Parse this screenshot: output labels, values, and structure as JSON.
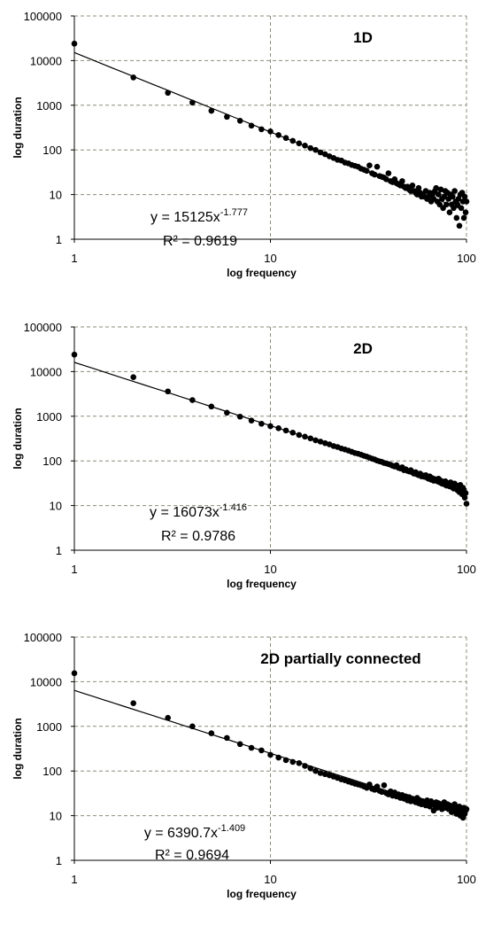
{
  "chart_data": [
    {
      "type": "scatter",
      "title": "1D",
      "xlabel": "log frequency",
      "ylabel": "log duration",
      "log_x": true,
      "log_y": true,
      "grid": true,
      "color": "#000000",
      "xlim": [
        1,
        100
      ],
      "ylim": [
        1,
        100000
      ],
      "xticks": [
        1,
        10,
        100
      ],
      "yticks": [
        1,
        10,
        100,
        1000,
        10000,
        100000
      ],
      "equation": {
        "text": "y = 15125x",
        "exponent": "-1.777"
      },
      "r_squared": "R² = 0.9619",
      "trendline": {
        "coefficient": 15125,
        "exponent": -1.777
      },
      "x": [
        1,
        2,
        3,
        4,
        5,
        6,
        7,
        8,
        9,
        10,
        11,
        12,
        13,
        14,
        15,
        16,
        17,
        18,
        19,
        20,
        21,
        22,
        23,
        24,
        25,
        26,
        27,
        28,
        29,
        30,
        31,
        32,
        33,
        34,
        35,
        36,
        37,
        38,
        39,
        40,
        41,
        42,
        43,
        44,
        45,
        46,
        47,
        48,
        49,
        50,
        51,
        52,
        53,
        54,
        55,
        56,
        57,
        58,
        59,
        60,
        61,
        62,
        63,
        64,
        65,
        66,
        67,
        68,
        69,
        70,
        71,
        72,
        73,
        74,
        75,
        76,
        77,
        78,
        79,
        80,
        81,
        82,
        83,
        84,
        85,
        86,
        87,
        88,
        89,
        90,
        91,
        92,
        93,
        94,
        95,
        96,
        97,
        98,
        99,
        100
      ],
      "values": [
        24000,
        4200,
        1900,
        1150,
        750,
        550,
        450,
        350,
        290,
        260,
        215,
        185,
        160,
        140,
        125,
        110,
        100,
        88,
        80,
        72,
        66,
        60,
        58,
        52,
        50,
        46,
        44,
        42,
        38,
        36,
        34,
        45,
        30,
        28,
        42,
        26,
        25,
        24,
        22,
        30,
        20,
        19,
        22,
        18,
        17,
        16,
        20,
        15,
        14,
        15,
        13,
        12,
        16,
        12,
        11,
        10,
        14,
        11,
        9,
        10,
        9,
        12,
        8,
        9,
        11,
        7,
        10,
        8,
        12,
        14,
        7,
        10,
        6,
        13,
        8,
        5,
        9,
        12,
        6,
        11,
        8,
        4,
        10,
        6,
        9,
        5,
        12,
        7,
        3,
        6,
        8,
        2,
        10,
        5,
        11,
        7,
        3,
        9,
        4,
        7
      ]
    },
    {
      "type": "scatter",
      "title": "2D",
      "xlabel": "log frequency",
      "ylabel": "log duration",
      "log_x": true,
      "log_y": true,
      "grid": true,
      "color": "#000000",
      "xlim": [
        1,
        100
      ],
      "ylim": [
        1,
        100000
      ],
      "xticks": [
        1,
        10,
        100
      ],
      "yticks": [
        1,
        10,
        100,
        1000,
        10000,
        100000
      ],
      "equation": {
        "text": "y = 16073x",
        "exponent": "-1.416"
      },
      "r_squared": "R² = 0.9786",
      "trendline": {
        "coefficient": 16073,
        "exponent": -1.416
      },
      "x": [
        1,
        2,
        3,
        4,
        5,
        6,
        7,
        8,
        9,
        10,
        11,
        12,
        13,
        14,
        15,
        16,
        17,
        18,
        19,
        20,
        21,
        22,
        23,
        24,
        25,
        26,
        27,
        28,
        29,
        30,
        31,
        32,
        33,
        34,
        35,
        36,
        37,
        38,
        39,
        40,
        41,
        42,
        43,
        44,
        45,
        46,
        47,
        48,
        49,
        50,
        51,
        52,
        53,
        54,
        55,
        56,
        57,
        58,
        59,
        60,
        61,
        62,
        63,
        64,
        65,
        66,
        67,
        68,
        69,
        70,
        71,
        72,
        73,
        74,
        75,
        76,
        77,
        78,
        79,
        80,
        81,
        82,
        83,
        84,
        85,
        86,
        87,
        88,
        89,
        90,
        91,
        92,
        93,
        94,
        95,
        96,
        97,
        98,
        99,
        100
      ],
      "values": [
        24000,
        7500,
        3600,
        2300,
        1650,
        1200,
        980,
        800,
        680,
        600,
        540,
        480,
        430,
        380,
        350,
        320,
        290,
        270,
        250,
        235,
        215,
        205,
        190,
        180,
        170,
        160,
        150,
        145,
        138,
        130,
        125,
        118,
        112,
        108,
        102,
        98,
        95,
        90,
        88,
        85,
        82,
        78,
        75,
        80,
        70,
        68,
        72,
        62,
        65,
        60,
        58,
        62,
        55,
        52,
        56,
        50,
        48,
        52,
        45,
        47,
        44,
        48,
        42,
        40,
        45,
        38,
        41,
        36,
        39,
        37,
        35,
        40,
        33,
        36,
        31,
        34,
        30,
        35,
        28,
        32,
        30,
        27,
        33,
        26,
        29,
        24,
        31,
        25,
        28,
        22,
        26,
        20,
        29,
        23,
        18,
        25,
        21,
        15,
        19,
        11
      ]
    },
    {
      "type": "scatter",
      "title": "2D partially connected",
      "xlabel": "log frequency",
      "ylabel": "log duration",
      "log_x": true,
      "log_y": true,
      "grid": true,
      "color": "#000000",
      "xlim": [
        1,
        100
      ],
      "ylim": [
        1,
        100000
      ],
      "xticks": [
        1,
        10,
        100
      ],
      "yticks": [
        1,
        10,
        100,
        1000,
        10000,
        100000
      ],
      "equation": {
        "text": "y = 6390.7x",
        "exponent": "-1.409"
      },
      "r_squared": "R² = 0.9694",
      "trendline": {
        "coefficient": 6390.7,
        "exponent": -1.409
      },
      "x": [
        1,
        2,
        3,
        4,
        5,
        6,
        7,
        8,
        9,
        10,
        11,
        12,
        13,
        14,
        15,
        16,
        17,
        18,
        19,
        20,
        21,
        22,
        23,
        24,
        25,
        26,
        27,
        28,
        29,
        30,
        31,
        32,
        33,
        34,
        35,
        36,
        37,
        38,
        39,
        40,
        41,
        42,
        43,
        44,
        45,
        46,
        47,
        48,
        49,
        50,
        51,
        52,
        53,
        54,
        55,
        56,
        57,
        58,
        59,
        60,
        61,
        62,
        63,
        64,
        65,
        66,
        67,
        68,
        69,
        70,
        71,
        72,
        73,
        74,
        75,
        76,
        77,
        78,
        79,
        80,
        81,
        82,
        83,
        84,
        85,
        86,
        87,
        88,
        89,
        90,
        91,
        92,
        93,
        94,
        95,
        96,
        97,
        98,
        99,
        100
      ],
      "values": [
        15500,
        3300,
        1550,
        1000,
        700,
        550,
        400,
        330,
        290,
        230,
        200,
        175,
        160,
        150,
        130,
        115,
        100,
        90,
        85,
        80,
        75,
        70,
        65,
        62,
        58,
        55,
        52,
        50,
        48,
        45,
        42,
        50,
        40,
        38,
        45,
        36,
        34,
        48,
        32,
        30,
        35,
        28,
        33,
        27,
        30,
        25,
        29,
        24,
        27,
        22,
        26,
        21,
        24,
        23,
        20,
        25,
        19,
        22,
        18,
        21,
        20,
        17,
        22,
        19,
        16,
        21,
        18,
        13,
        17,
        20,
        15,
        19,
        16,
        18,
        14,
        17,
        20,
        15,
        16,
        18,
        14,
        17,
        15,
        12,
        16,
        13,
        18,
        14,
        11,
        15,
        13,
        16,
        10,
        14,
        12,
        9,
        15,
        11,
        13,
        14
      ]
    }
  ]
}
